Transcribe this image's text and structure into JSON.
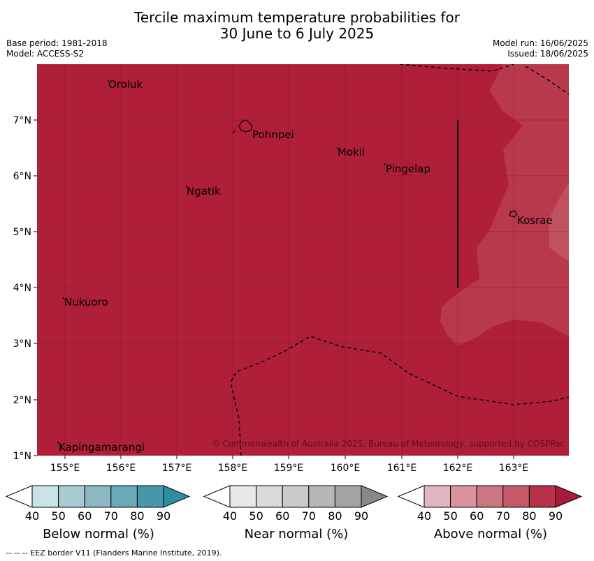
{
  "title": {
    "line1": "Tercile maximum temperature probabilities for",
    "line2": "30 June to 6 July 2025"
  },
  "meta_left": {
    "base_period": "Base period: 1981-2018",
    "model": "Model: ACCESS-S2"
  },
  "meta_right": {
    "model_run": "Model run: 16/06/2025",
    "issued": "Issued: 18/06/2025"
  },
  "map": {
    "lon_ticks": [
      "155°E",
      "156°E",
      "157°E",
      "158°E",
      "159°E",
      "160°E",
      "161°E",
      "162°E",
      "163°E"
    ],
    "lat_ticks": [
      "1°N",
      "2°N",
      "3°N",
      "4°N",
      "5°N",
      "6°N",
      "7°N"
    ],
    "places": [
      "Oroluk",
      "Pohnpei",
      "Mokil",
      "Pingelap",
      "Ngatik",
      "Kosrae",
      "Nukuoro",
      "Kapingamarangi"
    ],
    "copyright": "© Commonwealth of Australia 2025, Bureau of Meteorology, supported by COSPPac",
    "colors": {
      "above_80": "#b01f3a",
      "above_70": "#b8384d",
      "above_60": "#c05160"
    }
  },
  "colorbars": [
    {
      "label": "Below normal (%)",
      "ticks": [
        "40",
        "50",
        "60",
        "70",
        "80",
        "90"
      ],
      "colors": [
        "#c9e2e8",
        "#a8cad1",
        "#8bb8c2",
        "#6aaab8",
        "#4697aa",
        "#2e8ca5"
      ]
    },
    {
      "label": "Near normal (%)",
      "ticks": [
        "40",
        "50",
        "60",
        "70",
        "80",
        "90"
      ],
      "colors": [
        "#e8e8e8",
        "#d9d9d9",
        "#cbcbcb",
        "#b7b7b7",
        "#a4a4a4",
        "#888888"
      ]
    },
    {
      "label": "Above normal (%)",
      "ticks": [
        "40",
        "50",
        "60",
        "70",
        "80",
        "90"
      ],
      "colors": [
        "#e1b6be",
        "#d8939c",
        "#cd7580",
        "#c45a69",
        "#b8314a",
        "#ab1a3a"
      ]
    }
  ],
  "footer": "--  --  -- EEZ border V11 (Flanders Marine Institute, 2019)."
}
